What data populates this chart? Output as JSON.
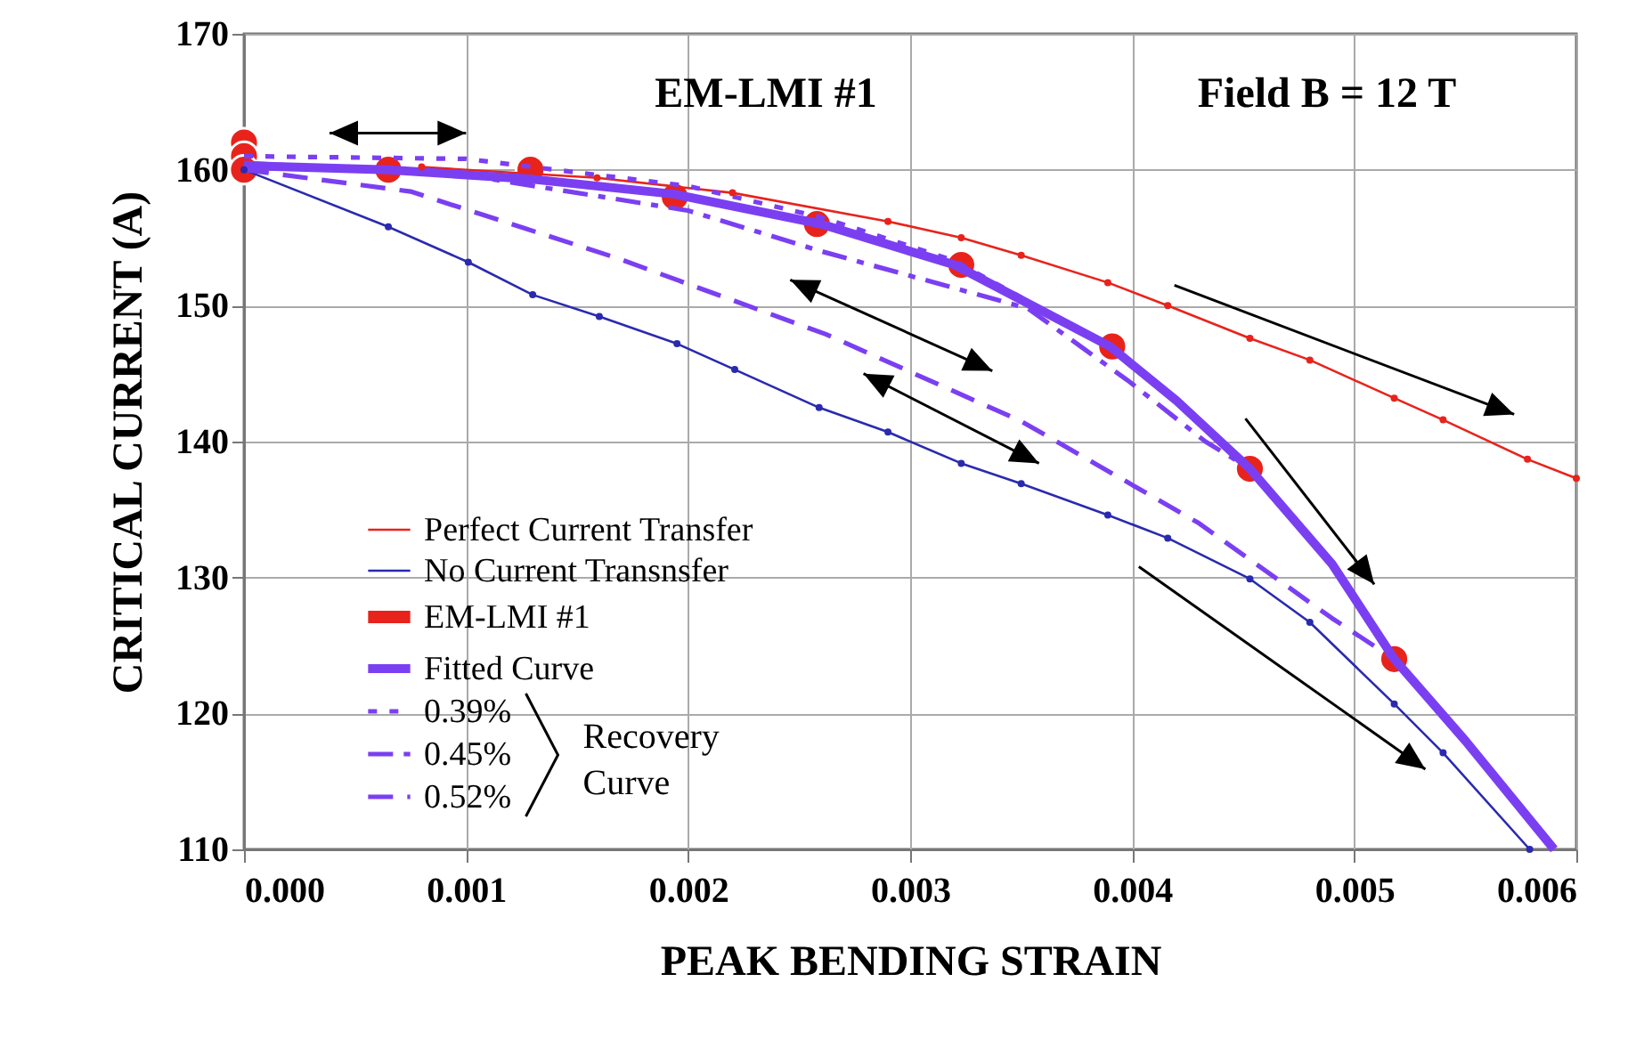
{
  "chart_data": {
    "type": "line",
    "xlabel": "PEAK BENDING STRAIN",
    "ylabel": "CRITICAL CURRENT (A)",
    "xlim": [
      0,
      0.006
    ],
    "ylim": [
      110,
      170
    ],
    "xticks": [
      {
        "value": 0,
        "label": "0.000"
      },
      {
        "value": 0.001,
        "label": "0.001"
      },
      {
        "value": 0.002,
        "label": "0.002"
      },
      {
        "value": 0.003,
        "label": "0.003"
      },
      {
        "value": 0.004,
        "label": "0.004"
      },
      {
        "value": 0.005,
        "label": "0.005"
      },
      {
        "value": 0.006,
        "label": "0.006"
      }
    ],
    "yticks": [
      110,
      120,
      130,
      140,
      150,
      160,
      170
    ],
    "grid": true,
    "legend": "bottom left",
    "annotations": [
      "EM-LMI #1",
      "Field B = 12 T",
      "Recovery Curve"
    ],
    "series": [
      {
        "name": "Perfect Current Transfer",
        "color": "#e8231c",
        "marker": "circle",
        "line_style": "solid",
        "x": [
          0.0008,
          0.00159,
          0.0022,
          0.0029,
          0.00323,
          0.0035,
          0.00389,
          0.00416,
          0.00453,
          0.0048,
          0.00518,
          0.0054,
          0.00578,
          0.006
        ],
        "values": [
          160.2,
          159.4,
          158.3,
          156.2,
          155,
          153.7,
          151.7,
          150,
          147.6,
          146,
          143.2,
          141.6,
          138.7,
          137.3
        ]
      },
      {
        "name": "No Current Transnsfer",
        "color": "#2a2ab0",
        "marker": "circle",
        "line_style": "solid",
        "x": [
          0,
          0.00065,
          0.00101,
          0.0013,
          0.0016,
          0.00195,
          0.00221,
          0.00259,
          0.0029,
          0.00323,
          0.0035,
          0.00389,
          0.00416,
          0.00453,
          0.0048,
          0.00518,
          0.0054,
          0.00579
        ],
        "values": [
          160,
          155.8,
          153.2,
          150.8,
          149.2,
          147.2,
          145.3,
          142.5,
          140.7,
          138.4,
          136.9,
          134.6,
          132.9,
          129.9,
          126.7,
          120.7,
          117.1,
          110
        ]
      },
      {
        "name": "EM-LMI #1",
        "color": "#e8231c",
        "type": "scatter",
        "marker": "circle",
        "x": [
          0,
          0,
          0,
          0.00065,
          0.00129,
          0.00194,
          0.00258,
          0.00323,
          0.00391,
          0.00453,
          0.00518
        ],
        "values": [
          162,
          161,
          160,
          160,
          160,
          158,
          156,
          153,
          147,
          138,
          124
        ]
      },
      {
        "name": "Fitted Curve",
        "color": "#7b3ff2",
        "marker": "none",
        "line_style": "solid",
        "x": [
          0,
          0.00065,
          0.0013,
          0.00194,
          0.0026,
          0.0032,
          0.0039,
          0.0042,
          0.00453,
          0.0049,
          0.00518,
          0.0055,
          0.0059
        ],
        "values": [
          160.3,
          160,
          159.3,
          158.2,
          156,
          153,
          147,
          143,
          138,
          131,
          124,
          118,
          110
        ]
      },
      {
        "name": "0.39%",
        "color": "#7b3ff2",
        "marker": "none",
        "line_style": "dotted",
        "x": [
          0,
          0.001,
          0.002,
          0.0026,
          0.0032,
          0.0039
        ],
        "values": [
          161,
          160.8,
          158.8,
          156.5,
          153.3,
          147
        ]
      },
      {
        "name": "0.45%",
        "color": "#7b3ff2",
        "marker": "none",
        "line_style": "dashdot",
        "x": [
          0,
          0.001,
          0.002,
          0.0026,
          0.00353,
          0.00398,
          0.00433,
          0.00453
        ],
        "values": [
          160.5,
          159.6,
          157,
          154,
          149.8,
          144.5,
          140,
          138
        ]
      },
      {
        "name": "0.52%",
        "color": "#7b3ff2",
        "marker": "none",
        "line_style": "dashed",
        "x": [
          0,
          0.00075,
          0.00168,
          0.00262,
          0.0035,
          0.0043,
          0.0049,
          0.00518
        ],
        "values": [
          160,
          158.4,
          153.5,
          147.9,
          141.5,
          134,
          127,
          124
        ]
      }
    ]
  }
}
